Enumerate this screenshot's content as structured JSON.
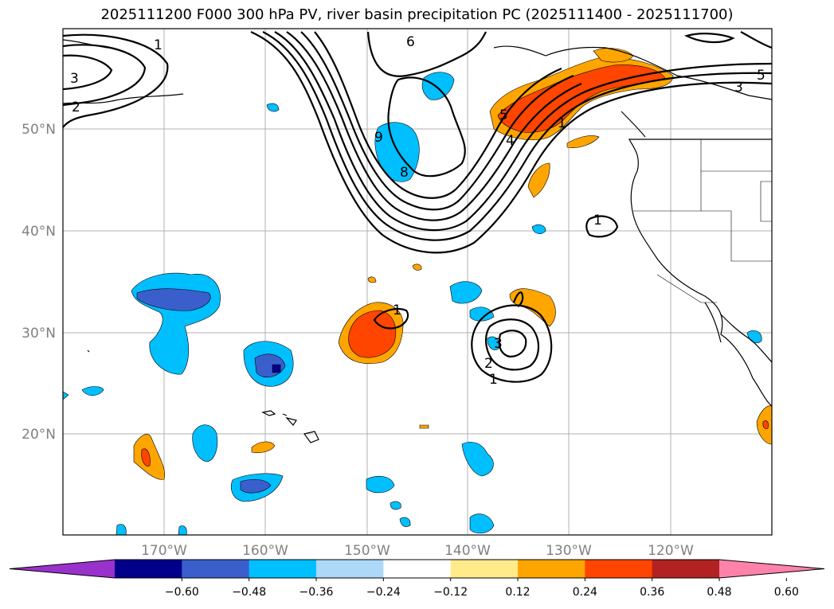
{
  "title": "2025111200 F000 300 hPa PV, river basin precipitation PC (2025111400 - 2025111700)",
  "map": {
    "lon_labels": [
      "170°W",
      "160°W",
      "150°W",
      "140°W",
      "130°W",
      "120°W"
    ],
    "lat_labels": [
      "50°N",
      "40°N",
      "30°N",
      "20°N"
    ],
    "pv_contour_labels": [
      "1",
      "2",
      "3",
      "1",
      "6",
      "9",
      "8",
      "4",
      "1",
      "5",
      "3",
      "5",
      "1",
      "1",
      "2",
      "3"
    ]
  },
  "colorbar": {
    "ticks": [
      "−0.60",
      "−0.48",
      "−0.36",
      "−0.24",
      "−0.12",
      "0.12",
      "0.24",
      "0.36",
      "0.48",
      "0.60"
    ],
    "colors": [
      "#9932cc",
      "#00008b",
      "#3a5fcd",
      "#00bfff",
      "#add8f7",
      "#ffffff",
      "#ffeb8a",
      "#ffa500",
      "#ff4500",
      "#b22222",
      "#ff82ab"
    ]
  }
}
